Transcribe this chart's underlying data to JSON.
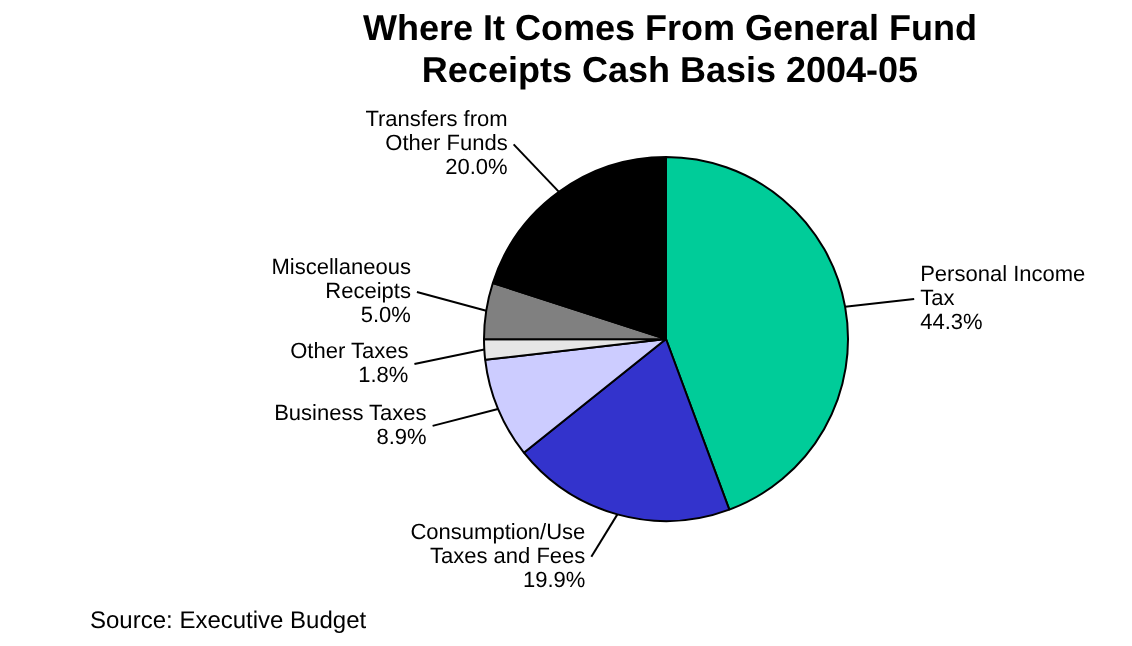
{
  "chart_data": {
    "type": "pie",
    "title": "Where It Comes From General Fund Receipts Cash Basis 2004-05",
    "categories": [
      "Personal Income Tax",
      "Consumption/Use Taxes and Fees",
      "Business Taxes",
      "Other Taxes",
      "Miscellaneous Receipts",
      "Transfers from Other Funds"
    ],
    "values": [
      44.3,
      19.9,
      8.9,
      1.8,
      5.0,
      20.0
    ],
    "value_labels": [
      "44.3%",
      "19.9%",
      "8.9%",
      "1.8%",
      "5.0%",
      "20.0%"
    ],
    "colors": [
      "#00cc99",
      "#3333cc",
      "#ccccff",
      "#e6e6e6",
      "#808080",
      "#000000"
    ],
    "legend": false,
    "annotations": [
      "Source: Executive Budget"
    ]
  }
}
